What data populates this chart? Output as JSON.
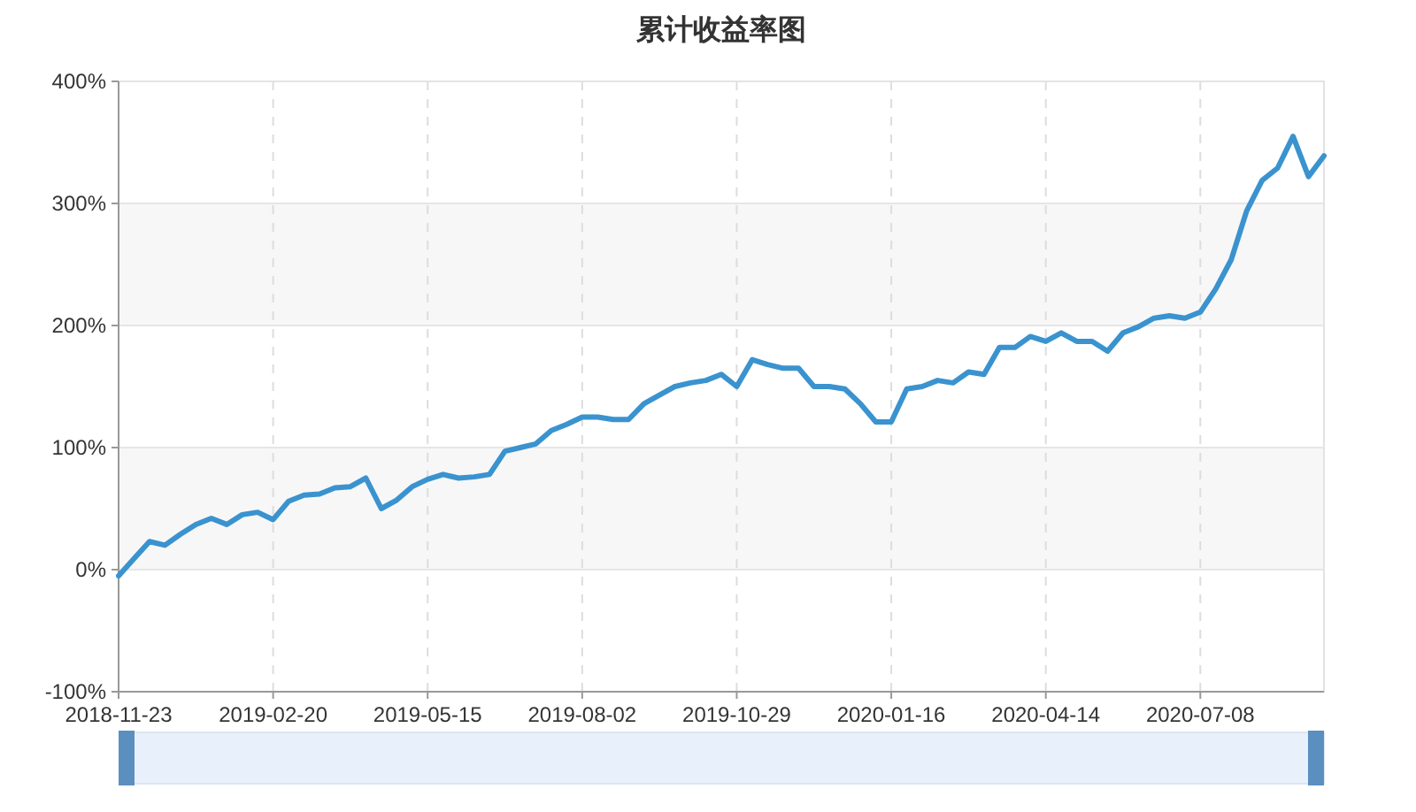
{
  "chart_data": {
    "type": "line",
    "title": "累计收益率图",
    "categories": [
      "2018-11-23",
      null,
      null,
      null,
      null,
      null,
      null,
      null,
      null,
      null,
      "2019-02-20",
      null,
      null,
      null,
      null,
      null,
      null,
      null,
      null,
      null,
      "2019-05-15",
      null,
      null,
      null,
      null,
      null,
      null,
      null,
      null,
      null,
      "2019-08-02",
      null,
      null,
      null,
      null,
      null,
      null,
      null,
      null,
      null,
      "2019-10-29",
      null,
      null,
      null,
      null,
      null,
      null,
      null,
      null,
      null,
      "2020-01-16",
      null,
      null,
      null,
      null,
      null,
      null,
      null,
      null,
      null,
      "2020-04-14",
      null,
      null,
      null,
      null,
      null,
      null,
      null,
      null,
      null,
      "2020-07-08",
      null,
      null,
      null,
      null,
      null,
      null,
      null,
      null
    ],
    "series": [
      {
        "color": "#3a93cf",
        "values": [
          -5,
          9,
          23,
          20,
          29,
          37,
          42,
          37,
          45,
          47,
          41,
          56,
          61,
          62,
          67,
          68,
          75,
          50,
          57,
          68,
          74,
          78,
          75,
          76,
          78,
          97,
          100,
          103,
          114,
          119,
          125,
          125,
          123,
          123,
          136,
          143,
          150,
          153,
          155,
          160,
          150,
          172,
          168,
          165,
          165,
          150,
          150,
          148,
          136,
          121,
          121,
          148,
          150,
          155,
          153,
          162,
          160,
          182,
          182,
          191,
          187,
          194,
          187,
          187,
          179,
          194,
          199,
          206,
          208,
          206,
          211,
          230,
          254,
          294,
          319,
          329,
          355,
          322,
          339
        ]
      }
    ],
    "ylim": [
      -100,
      400
    ],
    "yticks": [
      {
        "value": -100,
        "label": "-100%"
      },
      {
        "value": 0,
        "label": "0%"
      },
      {
        "value": 100,
        "label": "100%"
      },
      {
        "value": 200,
        "label": "200%"
      },
      {
        "value": 300,
        "label": "300%"
      },
      {
        "value": 400,
        "label": "400%"
      }
    ],
    "grid": true,
    "marker": "none",
    "line_style": "solid"
  }
}
